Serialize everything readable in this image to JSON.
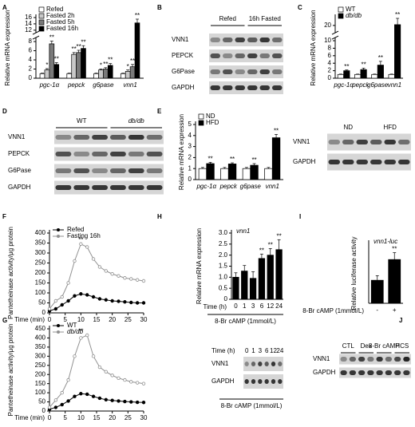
{
  "chart_data": [
    {
      "type": "bar",
      "label": "A",
      "ylabel": "Relative mRNA expression",
      "italic_categories": true,
      "legend": "upper left",
      "categories": [
        "pgc-1α",
        "pepck",
        "g6pase",
        "vnn1"
      ],
      "ylim": [
        0,
        16
      ],
      "yticks": [
        0,
        2,
        4,
        6,
        8,
        12,
        14,
        16
      ],
      "ybreak": [
        9,
        11
      ],
      "series": [
        {
          "name": "Refed",
          "color": "#ffffff",
          "values": [
            1,
            1,
            1,
            1
          ],
          "errors": [
            0.1,
            0.1,
            0.1,
            0.1
          ]
        },
        {
          "name": "Fasted 2h",
          "color": "#c8c8c8",
          "values": [
            1.8,
            5.2,
            1.8,
            1.5
          ],
          "errors": [
            0.3,
            0.4,
            0.2,
            0.3
          ],
          "stars": [
            "*",
            "**",
            "*",
            "*"
          ]
        },
        {
          "name": "Fasted 5h",
          "color": "#7a7a7a",
          "values": [
            7.5,
            5.6,
            2,
            2.5
          ],
          "errors": [
            0.6,
            0.5,
            0.3,
            0.5
          ],
          "stars": [
            "**",
            "**",
            "**",
            "**"
          ]
        },
        {
          "name": "Fasted 16h",
          "color": "#000000",
          "values": [
            3,
            6.5,
            2.8,
            14.3
          ],
          "errors": [
            0.4,
            0.6,
            0.4,
            1.2
          ],
          "stars": [
            "**",
            "**",
            "**",
            "**"
          ]
        }
      ]
    },
    {
      "type": "blot",
      "label": "B",
      "groups": [
        "Refed",
        "16h Fasted"
      ],
      "rows": [
        "VNN1",
        "PEPCK",
        "G6Pase",
        "GAPDH"
      ]
    },
    {
      "type": "bar",
      "label": "C",
      "ylabel": "Relative mRNA expression",
      "italic_categories": true,
      "legend": "upper left",
      "categories": [
        "pgc-1α",
        "pepck",
        "g6pase",
        "vnn1"
      ],
      "ylim": [
        0,
        25
      ],
      "yticks": [
        0,
        2,
        4,
        6,
        8,
        10,
        20
      ],
      "ybreak": [
        11,
        15
      ],
      "series": [
        {
          "name": "WT",
          "color": "#ffffff",
          "values": [
            1,
            1,
            1,
            1
          ],
          "errors": [
            0.1,
            0.1,
            0.1,
            0.1
          ]
        },
        {
          "name": "db/db",
          "color": "#000000",
          "values": [
            2,
            2.3,
            3.5,
            20.5
          ],
          "errors": [
            0.2,
            0.4,
            1,
            4
          ],
          "stars": [
            "**",
            "**",
            "**",
            "**"
          ]
        }
      ]
    },
    {
      "type": "blot",
      "label": "D",
      "groups": [
        "WT",
        "db/db"
      ],
      "rows": [
        "VNN1",
        "PEPCK",
        "G6Pase",
        "GAPDH"
      ]
    },
    {
      "type": "bar",
      "label": "E",
      "ylabel": "Relative mRNA expression",
      "italic_categories": true,
      "legend": "upper left",
      "categories": [
        "pgc-1α",
        "pepck",
        "g6pase",
        "vnn1"
      ],
      "ylim": [
        0,
        5
      ],
      "yticks": [
        0,
        1,
        2,
        3,
        4,
        5
      ],
      "series": [
        {
          "name": "ND",
          "color": "#ffffff",
          "values": [
            1,
            1,
            1,
            1
          ],
          "errors": [
            0.1,
            0.1,
            0.1,
            0.1
          ]
        },
        {
          "name": "HFD",
          "color": "#000000",
          "values": [
            1.45,
            1.42,
            1.3,
            3.8
          ],
          "errors": [
            0.12,
            0.1,
            0.15,
            0.3
          ],
          "stars": [
            "**",
            "**",
            "**",
            "**"
          ]
        }
      ]
    },
    {
      "type": "blot",
      "groups": [
        "ND",
        "HFD"
      ],
      "rows": [
        "VNN1",
        "GAPDH"
      ]
    },
    {
      "type": "line",
      "label": "F",
      "ylabel": "Pantetheinase activity/μg protein",
      "xlabel": "Time (min)",
      "legend": "upper left",
      "x": [
        0,
        2,
        4,
        6,
        8,
        10,
        12,
        14,
        16,
        18,
        20,
        22,
        24,
        26,
        28,
        30
      ],
      "xlim": [
        0,
        30
      ],
      "xticks": [
        0,
        5,
        10,
        15,
        20,
        25,
        30
      ],
      "ylim": [
        0,
        400
      ],
      "yticks": [
        0,
        50,
        100,
        150,
        200,
        250,
        300,
        350,
        400
      ],
      "annotation": {
        "x": 10,
        "y": 365,
        "text": "**"
      },
      "series": [
        {
          "name": "Refed",
          "color": "#000000",
          "values": [
            10,
            20,
            40,
            60,
            85,
            95,
            90,
            80,
            70,
            65,
            60,
            58,
            55,
            52,
            50,
            50
          ]
        },
        {
          "name": "Fasting 16h",
          "color": "#909090",
          "values": [
            20,
            60,
            80,
            150,
            260,
            345,
            330,
            270,
            230,
            210,
            195,
            185,
            175,
            170,
            165,
            160
          ]
        }
      ]
    },
    {
      "type": "line",
      "label": "G",
      "ylabel": "Pantetheinase activity/μg protein",
      "xlabel": "Time (min)",
      "legend": "upper left",
      "x": [
        0,
        2,
        4,
        6,
        8,
        10,
        12,
        14,
        16,
        18,
        20,
        22,
        24,
        26,
        28,
        30
      ],
      "xlim": [
        0,
        30
      ],
      "xticks": [
        0,
        5,
        10,
        15,
        20,
        25,
        30
      ],
      "ylim": [
        0,
        450
      ],
      "yticks": [
        0,
        50,
        100,
        150,
        200,
        250,
        300,
        350,
        400,
        450
      ],
      "annotation": {
        "x": 10,
        "y": 435,
        "text": "**"
      },
      "series": [
        {
          "name": "WT",
          "color": "#000000",
          "values": [
            10,
            20,
            35,
            55,
            80,
            95,
            92,
            80,
            70,
            62,
            58,
            55,
            52,
            50,
            48,
            47
          ]
        },
        {
          "name": "db/db",
          "color": "#909090",
          "values": [
            20,
            60,
            100,
            170,
            300,
            400,
            415,
            300,
            240,
            215,
            195,
            180,
            170,
            160,
            155,
            150
          ]
        }
      ]
    },
    {
      "type": "bar",
      "label": "H",
      "subtitle": "vnn1",
      "ylabel": "Relative mRNA expression",
      "xlabel": "Time (h)",
      "footer": "8-Br cAMP (1mmol/L)",
      "categories": [
        "0",
        "1",
        "3",
        "6",
        "12",
        "24"
      ],
      "ylim": [
        0,
        3
      ],
      "yticks": [
        0,
        0.5,
        {
          "value": 1,
          "label": "1.0"
        },
        1.5,
        {
          "value": 2,
          "label": "2.0"
        },
        2.5,
        {
          "value": 3,
          "label": "3.0"
        }
      ],
      "series": [
        {
          "color": "#000000",
          "values": [
            1,
            1.28,
            0.95,
            1.85,
            2,
            2.25
          ],
          "errors": [
            0.2,
            0.25,
            0.3,
            0.2,
            0.3,
            0.45
          ],
          "stars": [
            null,
            null,
            null,
            "**",
            "**",
            "**"
          ]
        }
      ]
    },
    {
      "type": "blot",
      "xlabel": "Time (h)",
      "lane_labels": [
        "0",
        "1",
        "3",
        "6",
        "12",
        "24"
      ],
      "rows": [
        "VNN1",
        "GAPDH"
      ],
      "footer": "8-Br cAMP (1mmol/L)"
    },
    {
      "type": "bar",
      "label": "I",
      "subtitle": "vnn1-luc",
      "ylabel": "Relative luciferase activity",
      "xlabel": "8-Br cAMP (1mmol/L)",
      "categories": [
        "-",
        "+"
      ],
      "ylim": [
        0,
        2.6
      ],
      "series": [
        {
          "color": "#000000",
          "values": [
            1,
            1.9
          ],
          "errors": [
            0.2,
            0.3
          ],
          "stars": [
            null,
            "**"
          ]
        }
      ]
    },
    {
      "type": "blot",
      "label": "J",
      "groups": [
        "CTL",
        "Dex",
        "8-Br cAMP",
        "HCS"
      ],
      "rows": [
        "VNN1",
        "GAPDH"
      ]
    }
  ]
}
